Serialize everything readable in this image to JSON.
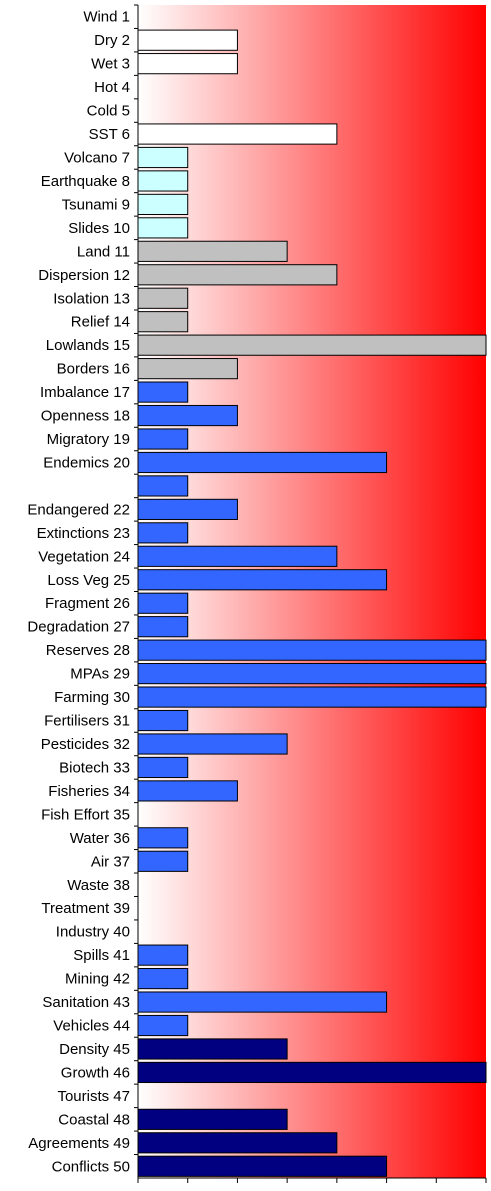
{
  "chart_data": {
    "type": "bar",
    "orientation": "horizontal",
    "categories": [
      "Wind 1",
      "Dry 2",
      "Wet 3",
      "Hot 4",
      "Cold 5",
      "SST 6",
      "Volcano 7",
      "Earthquake 8",
      "Tsunami 9",
      "Slides 10",
      "Land 11",
      "Dispersion 12",
      "Isolation 13",
      "Relief 14",
      "Lowlands 15",
      "Borders 16",
      "Imbalance 17",
      "Openness 18",
      "Migratory 19",
      "Endemics 20",
      "",
      "Endangered 22",
      "Extinctions 23",
      "Vegetation 24",
      "Loss Veg 25",
      "Fragment 26",
      "Degradation 27",
      "Reserves 28",
      "MPAs 29",
      "Farming 30",
      "Fertilisers 31",
      "Pesticides 32",
      "Biotech 33",
      "Fisheries 34",
      "Fish Effort 35",
      "Water 36",
      "Air 37",
      "Waste 38",
      "Treatment 39",
      "Industry 40",
      "Spills 41",
      "Mining 42",
      "Sanitation 43",
      "Vehicles 44",
      "Density 45",
      "Growth 46",
      "Tourists 47",
      "Coastal 48",
      "Agreements 49",
      "Conflicts 50"
    ],
    "values": [
      0,
      2,
      2,
      0,
      0,
      4,
      1,
      1,
      1,
      1,
      3,
      4,
      1,
      1,
      7,
      2,
      1,
      2,
      1,
      5,
      1,
      2,
      1,
      4,
      5,
      1,
      1,
      7,
      7,
      7,
      1,
      3,
      1,
      2,
      0,
      1,
      1,
      0,
      0,
      0,
      1,
      1,
      5,
      1,
      3,
      7,
      0,
      3,
      4,
      5
    ],
    "bar_colors": [
      "#ffffff",
      "#ffffff",
      "#ffffff",
      "#ffffff",
      "#ffffff",
      "#ffffff",
      "#ccffff",
      "#ccffff",
      "#ccffff",
      "#ccffff",
      "#c0c0c0",
      "#c0c0c0",
      "#c0c0c0",
      "#c0c0c0",
      "#c0c0c0",
      "#c0c0c0",
      "#3366ff",
      "#3366ff",
      "#3366ff",
      "#3366ff",
      "#3366ff",
      "#3366ff",
      "#3366ff",
      "#3366ff",
      "#3366ff",
      "#3366ff",
      "#3366ff",
      "#3366ff",
      "#3366ff",
      "#3366ff",
      "#3366ff",
      "#3366ff",
      "#3366ff",
      "#3366ff",
      "#3366ff",
      "#3366ff",
      "#3366ff",
      "#3366ff",
      "#3366ff",
      "#3366ff",
      "#3366ff",
      "#3366ff",
      "#3366ff",
      "#3366ff",
      "#000080",
      "#000080",
      "#000080",
      "#000080",
      "#000080",
      "#000080"
    ],
    "x_ticks": [
      "0",
      "1",
      "2",
      "3",
      "4",
      "5",
      "6",
      "7"
    ],
    "xlim": [
      0,
      7
    ],
    "background_gradient": [
      "#ffffff",
      "#ff0000"
    ],
    "grid": false,
    "title": "",
    "xlabel": "",
    "ylabel": ""
  }
}
